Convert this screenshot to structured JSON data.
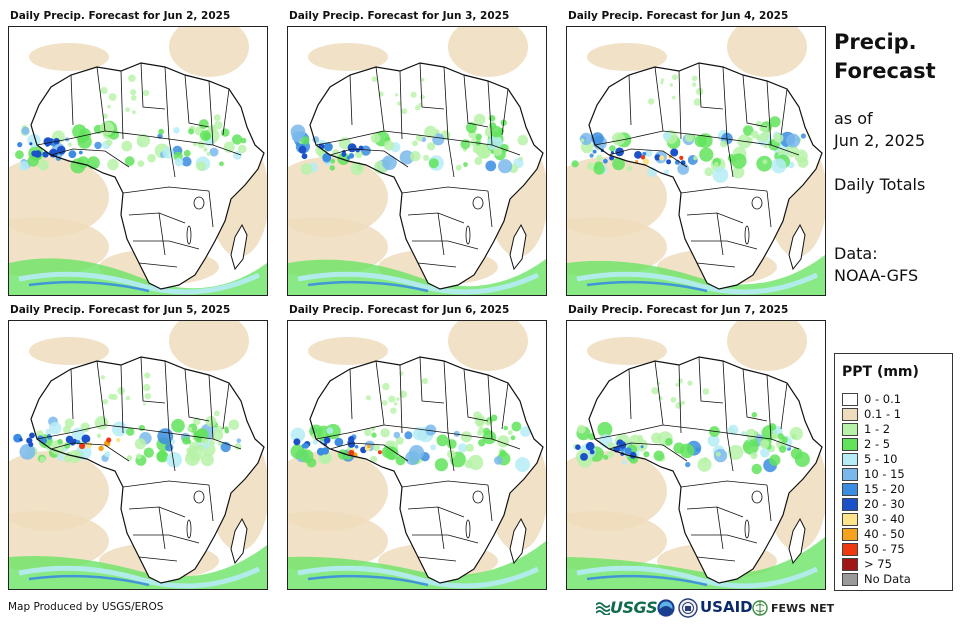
{
  "panels": [
    {
      "title": "Daily Precip. Forecast for Jun 2, 2025"
    },
    {
      "title": "Daily Precip. Forecast for Jun 3, 2025"
    },
    {
      "title": "Daily Precip. Forecast for Jun 4, 2025"
    },
    {
      "title": "Daily Precip. Forecast for Jun 5, 2025"
    },
    {
      "title": "Daily Precip. Forecast for Jun 6, 2025"
    },
    {
      "title": "Daily Precip. Forecast for Jun 7, 2025"
    }
  ],
  "side": {
    "title_line1": "Precip.",
    "title_line2": "Forecast",
    "asof_line1": "as of",
    "asof_line2": "Jun 2, 2025",
    "totals": "Daily Totals",
    "data_line1": "Data:",
    "data_line2": "NOAA-GFS"
  },
  "legend": {
    "title": "PPT (mm)",
    "items": [
      {
        "label": "0 - 0.1",
        "color": "#ffffff"
      },
      {
        "label": "0.1 - 1",
        "color": "#efdcbc"
      },
      {
        "label": "1 - 2",
        "color": "#b7f2a8"
      },
      {
        "label": "2 - 5",
        "color": "#62e35c"
      },
      {
        "label": "5 - 10",
        "color": "#b6ecf6"
      },
      {
        "label": "10 - 15",
        "color": "#7ab8ec"
      },
      {
        "label": "15 - 20",
        "color": "#3a8de0"
      },
      {
        "label": "20 - 30",
        "color": "#1c52c9"
      },
      {
        "label": "30 - 40",
        "color": "#fde38a"
      },
      {
        "label": "40 - 50",
        "color": "#f5a31c"
      },
      {
        "label": "50 - 75",
        "color": "#ef3a10"
      },
      {
        "label": "> 75",
        "color": "#a31616"
      },
      {
        "label": "No Data",
        "color": "#9a9a9a"
      }
    ]
  },
  "footer": {
    "credit": "Map Produced by USGS/EROS",
    "logos": {
      "usgs": "USGS",
      "usaid": "USAID",
      "fews": "FEWS NET"
    }
  }
}
